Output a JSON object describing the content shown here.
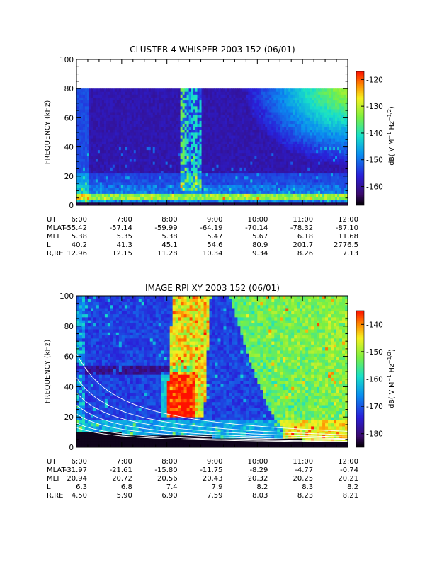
{
  "chart_data": [
    {
      "type": "heatmap",
      "title": "CLUSTER 4 WHISPER 2003 152 (06/01)",
      "ylabel": "FREQUENCY (kHz)",
      "ylim": [
        0,
        100
      ],
      "data_max_freq": 80,
      "y_ticks": [
        "0",
        "20",
        "40",
        "60",
        "80",
        "100"
      ],
      "x_ticks": [
        "6:00",
        "7:00",
        "8:00",
        "9:00",
        "10:00",
        "11:00",
        "12:00"
      ],
      "colorbar": {
        "label": "dB( V M⁻¹ Hz⁻¹ᐟ²)",
        "label_parts": [
          "dB( V M",
          "−1",
          " Hz",
          "−1/2",
          ")"
        ],
        "range": [
          -167,
          -117
        ],
        "ticks": [
          "-160",
          "-150",
          "-140",
          "-130",
          "-120"
        ],
        "tick_values": [
          -160,
          -150,
          -140,
          -130,
          -120
        ]
      },
      "ephemeris": [
        {
          "label": "UT",
          "values": [
            "6:00",
            "7:00",
            "8:00",
            "9:00",
            "10:00",
            "11:00",
            "12:00"
          ]
        },
        {
          "label": "MLAT",
          "values": [
            "-55.42",
            "-57.14",
            "-59.99",
            "-64.19",
            "-70.14",
            "-78.32",
            "-87.10"
          ]
        },
        {
          "label": "MLT",
          "values": [
            "5.38",
            "5.35",
            "5.38",
            "5.47",
            "5.67",
            "6.18",
            "11.68"
          ]
        },
        {
          "label": "L",
          "values": [
            "40.2",
            "41.3",
            "45.1",
            "54.6",
            "80.9",
            "201.7",
            "2776.5"
          ]
        },
        {
          "label": "R,RE",
          "values": [
            "12.96",
            "12.15",
            "11.28",
            "10.34",
            "9.34",
            "8.26",
            "7.13"
          ]
        }
      ]
    },
    {
      "type": "heatmap",
      "title": "IMAGE RPI XY 2003 152 (06/01)",
      "ylabel": "FREQUENCY (kHz)",
      "ylim": [
        0,
        100
      ],
      "y_ticks": [
        "0",
        "20",
        "40",
        "60",
        "80",
        "100"
      ],
      "x_ticks": [
        "6:00",
        "7:00",
        "8:00",
        "9:00",
        "10:00",
        "11:00",
        "12:00"
      ],
      "colorbar": {
        "label": "dB( V M⁻¹ Hz⁻¹ᐟ²)",
        "label_parts": [
          "dB( V M",
          "−1",
          " Hz",
          "−1/2",
          ")"
        ],
        "range": [
          -185,
          -135
        ],
        "ticks": [
          "-180",
          "-170",
          "-160",
          "-150",
          "-140"
        ],
        "tick_values": [
          -180,
          -170,
          -160,
          -150,
          -140
        ]
      },
      "ephemeris": [
        {
          "label": "UT",
          "values": [
            "6:00",
            "7:00",
            "8:00",
            "9:00",
            "10:00",
            "11:00",
            "12:00"
          ]
        },
        {
          "label": "MLAT",
          "values": [
            "-31.97",
            "-21.61",
            "-15.80",
            "-11.75",
            "-8.29",
            "-4.77",
            "-0.74"
          ]
        },
        {
          "label": "MLT",
          "values": [
            "20.94",
            "20.72",
            "20.56",
            "20.43",
            "20.32",
            "20.25",
            "20.21"
          ]
        },
        {
          "label": "L",
          "values": [
            "6.3",
            "6.8",
            "7.4",
            "7.9",
            "8.2",
            "8.3",
            "8.2"
          ]
        },
        {
          "label": "R,RE",
          "values": [
            "4.50",
            "5.90",
            "6.90",
            "7.59",
            "8.03",
            "8.23",
            "8.21"
          ]
        }
      ]
    }
  ]
}
